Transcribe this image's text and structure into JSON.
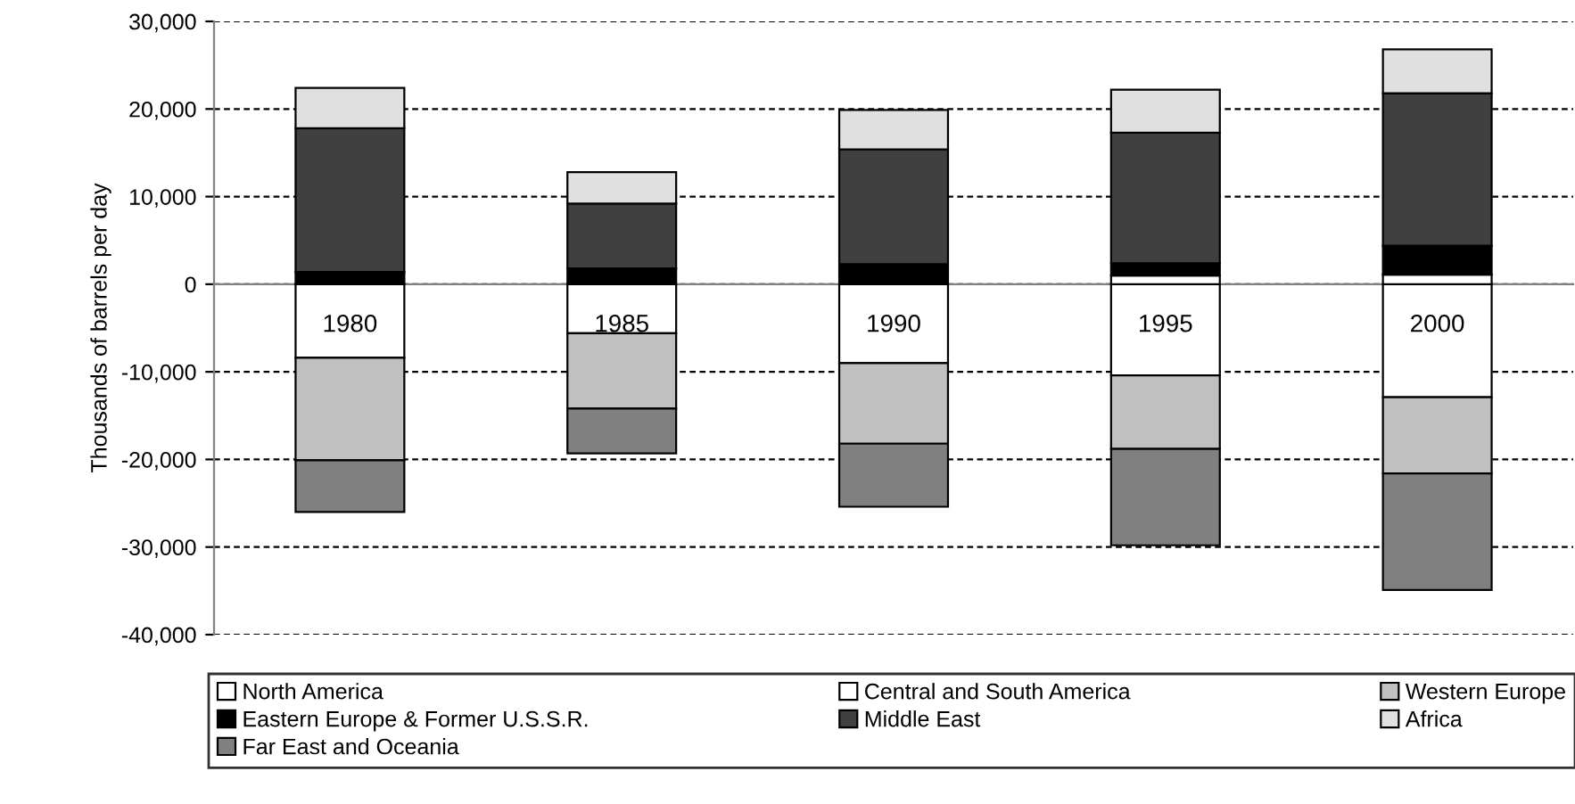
{
  "chart_data": {
    "type": "bar",
    "stacked": true,
    "ylabel": "Thousands of barrels per day",
    "categories": [
      "1980",
      "1985",
      "1990",
      "1995",
      "2000"
    ],
    "series": [
      {
        "name": "North America",
        "color": "#ffffff",
        "values": [
          -8400,
          -5600,
          -9000,
          -10400,
          -12900
        ]
      },
      {
        "name": "Central and South America",
        "color": "#ffffff",
        "values": [
          0,
          0,
          0,
          1000,
          1100
        ]
      },
      {
        "name": "Western Europe",
        "color": "#c0c0c0",
        "values": [
          -11700,
          -8600,
          -9200,
          -8400,
          -8700
        ]
      },
      {
        "name": "Eastern Europe & Former U.S.S.R.",
        "color": "#000000",
        "values": [
          1400,
          1800,
          2300,
          1400,
          3300
        ]
      },
      {
        "name": "Middle East",
        "color": "#404040",
        "values": [
          16400,
          7400,
          13100,
          14900,
          17400
        ]
      },
      {
        "name": "Africa",
        "color": "#e0e0e0",
        "values": [
          4600,
          3600,
          4500,
          4900,
          5000
        ]
      },
      {
        "name": "Far East and Oceania",
        "color": "#808080",
        "values": [
          -5900,
          -5100,
          -7200,
          -11000,
          -13300
        ]
      }
    ],
    "ylim": [
      -40000,
      30000
    ],
    "yticks": [
      {
        "value": -40000,
        "label": "-40,000"
      },
      {
        "value": -30000,
        "label": "-30,000"
      },
      {
        "value": -20000,
        "label": "-20,000"
      },
      {
        "value": -10000,
        "label": "-10,000"
      },
      {
        "value": 0,
        "label": "0"
      },
      {
        "value": 10000,
        "label": "10,000"
      },
      {
        "value": 20000,
        "label": "20,000"
      },
      {
        "value": 30000,
        "label": "30,000"
      }
    ],
    "grid": "y",
    "legend": "bottom"
  }
}
